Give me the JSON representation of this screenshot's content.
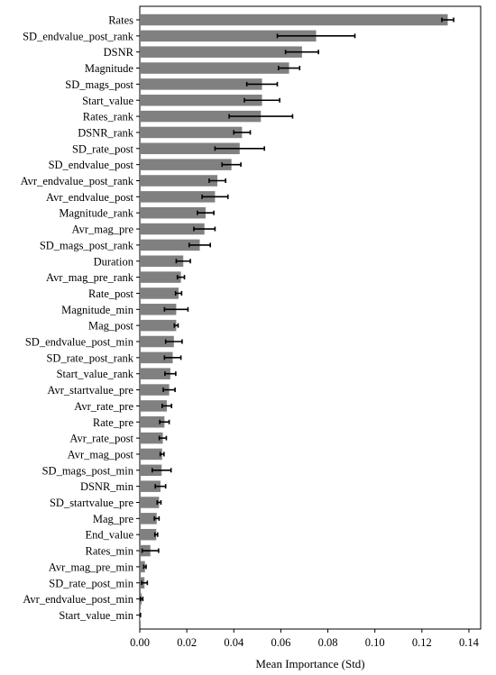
{
  "chart_data": {
    "type": "bar",
    "orientation": "horizontal",
    "xlabel": "Mean Importance (Std)",
    "ylabel": "",
    "xlim": [
      0,
      0.145
    ],
    "xticks": [
      "0.00",
      "0.02",
      "0.04",
      "0.06",
      "0.08",
      "0.10",
      "0.12",
      "0.14"
    ],
    "grid": false,
    "bar_color": "#808080",
    "error_color": "#000000",
    "categories": [
      "Rates",
      "SD_endvalue_post_rank",
      "DSNR",
      "Magnitude",
      "SD_mags_post",
      "Start_value",
      "Rates_rank",
      "DSNR_rank",
      "SD_rate_post",
      "SD_endvalue_post",
      "Avr_endvalue_post_rank",
      "Avr_endvalue_post",
      "Magnitude_rank",
      "Avr_mag_pre",
      "SD_mags_post_rank",
      "Duration",
      "Avr_mag_pre_rank",
      "Rate_post",
      "Magnitude_min",
      "Mag_post",
      "SD_endvalue_post_min",
      "SD_rate_post_rank",
      "Start_value_rank",
      "Avr_startvalue_pre",
      "Avr_rate_pre",
      "Rate_pre",
      "Avr_rate_post",
      "Avr_mag_post",
      "SD_mags_post_min",
      "DSNR_min",
      "SD_startvalue_pre",
      "Mag_pre",
      "End_value",
      "Rates_min",
      "Avr_mag_pre_min",
      "SD_rate_post_min",
      "Avr_endvalue_post_min",
      "Start_value_min"
    ],
    "values": [
      0.131,
      0.075,
      0.069,
      0.0635,
      0.052,
      0.052,
      0.0515,
      0.0435,
      0.0425,
      0.039,
      0.033,
      0.032,
      0.028,
      0.0275,
      0.0255,
      0.0185,
      0.0175,
      0.0165,
      0.0155,
      0.0155,
      0.0145,
      0.014,
      0.013,
      0.0125,
      0.0115,
      0.0105,
      0.0098,
      0.0095,
      0.0093,
      0.0088,
      0.0082,
      0.0072,
      0.007,
      0.0045,
      0.0022,
      0.002,
      0.0008,
      0.0002
    ],
    "errors": [
      0.0025,
      0.0165,
      0.007,
      0.0045,
      0.0065,
      0.0075,
      0.0135,
      0.0035,
      0.0105,
      0.004,
      0.0035,
      0.0055,
      0.0035,
      0.0045,
      0.0045,
      0.003,
      0.0015,
      0.0013,
      0.005,
      0.0008,
      0.0035,
      0.0035,
      0.0023,
      0.0025,
      0.002,
      0.002,
      0.0015,
      0.0008,
      0.004,
      0.0022,
      0.0008,
      0.001,
      0.0006,
      0.0035,
      0.0005,
      0.0012,
      0.0005,
      0.0001
    ]
  }
}
